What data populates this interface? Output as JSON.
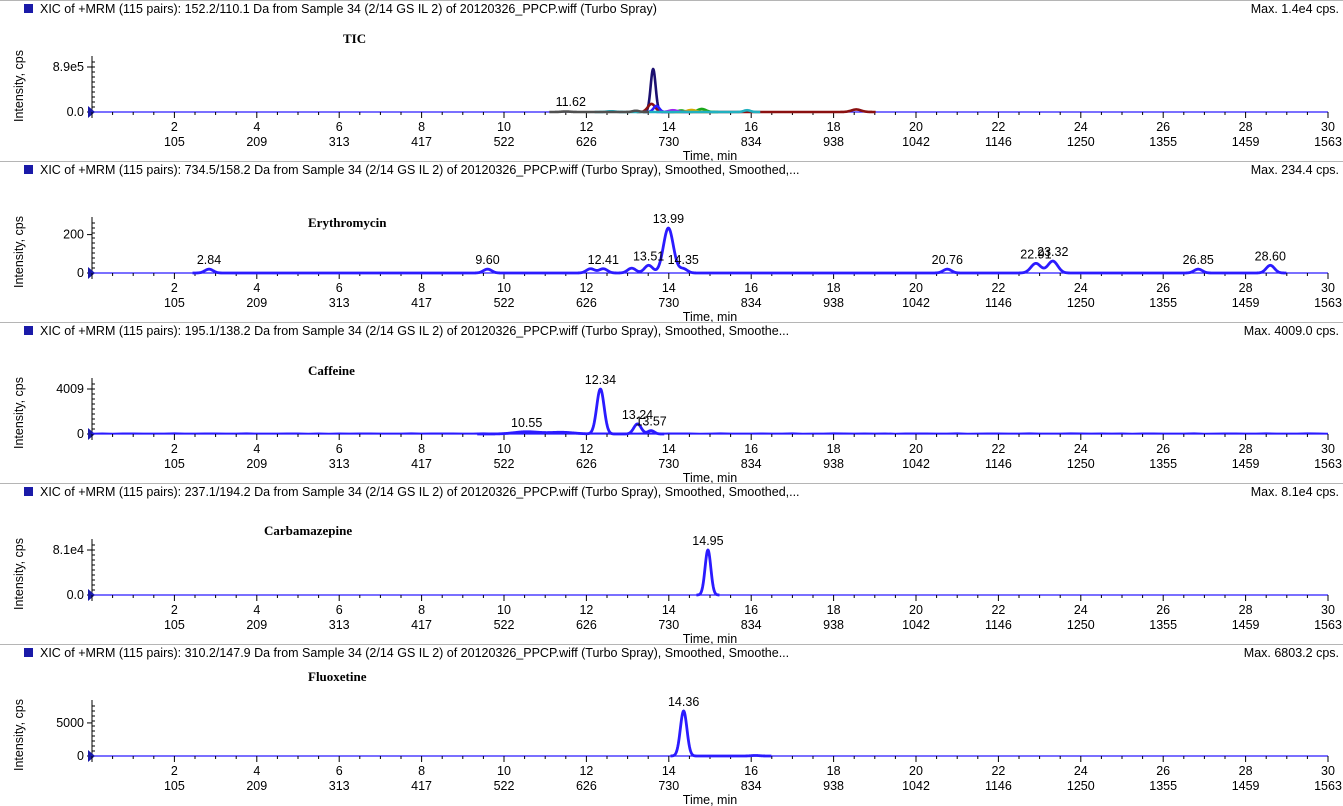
{
  "colors": {
    "trace": "#2b1bff",
    "marker": "#1a1aa8",
    "axis": "#000000"
  },
  "xaxis": {
    "label": "Time, min",
    "min_ticks": [
      "2",
      "4",
      "6",
      "8",
      "10",
      "12",
      "14",
      "16",
      "18",
      "20",
      "22",
      "24",
      "26",
      "28",
      "30"
    ],
    "scan_ticks": [
      "105",
      "209",
      "313",
      "417",
      "522",
      "626",
      "730",
      "834",
      "938",
      "1042",
      "1146",
      "1250",
      "1355",
      "1459",
      "1563"
    ]
  },
  "chart_data": [
    {
      "type": "line",
      "title": "XIC of +MRM (115 pairs): 152.2/110.1 Da  from Sample 34 (2/14 GS IL 2) of 20120326_PPCP.wiff (Turbo Spray)",
      "max_label": "Max. 1.4e4 cps.",
      "annotation": "TIC",
      "ylabel": "Intensity, cps",
      "yticks": [
        "8.9e5",
        "0.0"
      ],
      "ylim": [
        0,
        890000
      ],
      "xlim": [
        0,
        30
      ],
      "peak_labels": [
        {
          "x": 11.62,
          "y": 20000,
          "text": "11.62"
        }
      ],
      "series": [
        {
          "color": "#1c1070",
          "peaks": [
            [
              13.62,
              850000,
              0.06
            ]
          ]
        },
        {
          "color": "#8b1010",
          "peaks": [
            [
              13.58,
              160000,
              0.09
            ],
            [
              18.55,
              50000,
              0.12
            ]
          ]
        },
        {
          "color": "#2b1bff",
          "peaks": [
            [
              13.7,
              120000,
              0.07
            ]
          ]
        },
        {
          "color": "#1aa81a",
          "peaks": [
            [
              14.8,
              60000,
              0.1
            ],
            [
              14.3,
              30000,
              0.08
            ]
          ]
        },
        {
          "color": "#d4aa00",
          "peaks": [
            [
              14.55,
              40000,
              0.1
            ]
          ]
        },
        {
          "color": "#a020f0",
          "peaks": [
            [
              14.1,
              35000,
              0.1
            ]
          ]
        },
        {
          "color": "#20b0c0",
          "peaks": [
            [
              12.6,
              15000,
              0.1
            ],
            [
              15.9,
              35000,
              0.08
            ]
          ]
        },
        {
          "color": "#505050",
          "peaks": [
            [
              11.5,
              10000,
              0.1
            ],
            [
              13.2,
              25000,
              0.08
            ]
          ]
        }
      ]
    },
    {
      "type": "line",
      "title": "XIC of +MRM (115 pairs): 734.5/158.2 Da  from Sample 34 (2/14 GS IL 2) of 20120326_PPCP.wiff (Turbo Spray), Smoothed, Smoothed,...",
      "max_label": "Max. 234.4 cps.",
      "annotation": "Erythromycin",
      "ylabel": "Intensity, cps",
      "yticks": [
        "200",
        "0"
      ],
      "ytick_values": [
        200,
        0
      ],
      "ylim": [
        0,
        234.4
      ],
      "xlim": [
        0,
        30
      ],
      "peak_labels": [
        {
          "x": 2.84,
          "y": 20,
          "text": "2.84"
        },
        {
          "x": 9.6,
          "y": 20,
          "text": "9.60"
        },
        {
          "x": 12.41,
          "y": 22,
          "text": "12.41"
        },
        {
          "x": 13.51,
          "y": 40,
          "text": "13.51"
        },
        {
          "x": 13.99,
          "y": 234,
          "text": "13.99"
        },
        {
          "x": 14.35,
          "y": 22,
          "text": "14.35"
        },
        {
          "x": 20.76,
          "y": 20,
          "text": "20.76"
        },
        {
          "x": 22.91,
          "y": 50,
          "text": "22.91"
        },
        {
          "x": 23.32,
          "y": 62,
          "text": "23.32"
        },
        {
          "x": 26.85,
          "y": 20,
          "text": "26.85"
        },
        {
          "x": 28.6,
          "y": 40,
          "text": "28.60"
        }
      ],
      "series": [
        {
          "color": "#2b1bff",
          "peaks": [
            [
              2.84,
              20,
              0.1
            ],
            [
              9.6,
              20,
              0.1
            ],
            [
              12.1,
              22,
              0.1
            ],
            [
              12.41,
              22,
              0.1
            ],
            [
              13.1,
              25,
              0.1
            ],
            [
              13.51,
              40,
              0.1
            ],
            [
              13.99,
              234,
              0.12
            ],
            [
              14.35,
              22,
              0.1
            ],
            [
              20.76,
              20,
              0.1
            ],
            [
              22.91,
              50,
              0.12
            ],
            [
              23.32,
              62,
              0.12
            ],
            [
              26.85,
              20,
              0.1
            ],
            [
              28.6,
              40,
              0.1
            ]
          ]
        }
      ]
    },
    {
      "type": "line",
      "title": "XIC of +MRM (115 pairs): 195.1/138.2 Da  from Sample 34 (2/14 GS IL 2) of 20120326_PPCP.wiff (Turbo Spray), Smoothed, Smoothe...",
      "max_label": "Max. 4009.0 cps.",
      "annotation": "Caffeine",
      "ylabel": "Intensity, cps",
      "yticks": [
        "4009",
        "0"
      ],
      "ytick_values": [
        4009,
        0
      ],
      "ylim": [
        0,
        4009
      ],
      "xlim": [
        0,
        30
      ],
      "peak_labels": [
        {
          "x": 10.55,
          "y": 200,
          "text": "10.55"
        },
        {
          "x": 12.34,
          "y": 4009,
          "text": "12.34"
        },
        {
          "x": 13.24,
          "y": 900,
          "text": "13.24"
        },
        {
          "x": 13.57,
          "y": 300,
          "text": "13.57"
        }
      ],
      "series": [
        {
          "color": "#2b1bff",
          "peaks": [
            [
              10.55,
              200,
              0.3
            ],
            [
              11.4,
              150,
              0.3
            ],
            [
              12.34,
              4009,
              0.09
            ],
            [
              13.24,
              900,
              0.09
            ],
            [
              13.57,
              300,
              0.08
            ]
          ]
        }
      ]
    },
    {
      "type": "line",
      "title": "XIC of +MRM (115 pairs): 237.1/194.2 Da  from Sample 34 (2/14 GS IL 2) of 20120326_PPCP.wiff (Turbo Spray), Smoothed, Smoothed,...",
      "max_label": "Max. 8.1e4 cps.",
      "annotation": "Carbamazepine",
      "ylabel": "Intensity, cps",
      "yticks": [
        "8.1e4",
        "0.0"
      ],
      "ytick_values": [
        81000,
        0
      ],
      "ylim": [
        0,
        81000
      ],
      "xlim": [
        0,
        30
      ],
      "peak_labels": [
        {
          "x": 14.95,
          "y": 81000,
          "text": "14.95"
        }
      ],
      "series": [
        {
          "color": "#2b1bff",
          "peaks": [
            [
              14.95,
              81000,
              0.07
            ]
          ]
        }
      ]
    },
    {
      "type": "line",
      "title": "XIC of +MRM (115 pairs): 310.2/147.9 Da  from Sample 34 (2/14 GS IL 2) of 20120326_PPCP.wiff (Turbo Spray), Smoothed, Smoothe...",
      "max_label": "Max. 6803.2 cps.",
      "annotation": "Fluoxetine",
      "ylabel": "Intensity, cps",
      "yticks": [
        "5000",
        "0"
      ],
      "ytick_values": [
        5000,
        0
      ],
      "ylim": [
        0,
        6803.2
      ],
      "xlim": [
        0,
        30
      ],
      "peak_labels": [
        {
          "x": 14.36,
          "y": 6803,
          "text": "14.36"
        }
      ],
      "series": [
        {
          "color": "#2b1bff",
          "peaks": [
            [
              14.36,
              6803,
              0.08
            ],
            [
              16.1,
              80,
              0.1
            ]
          ]
        }
      ]
    }
  ]
}
